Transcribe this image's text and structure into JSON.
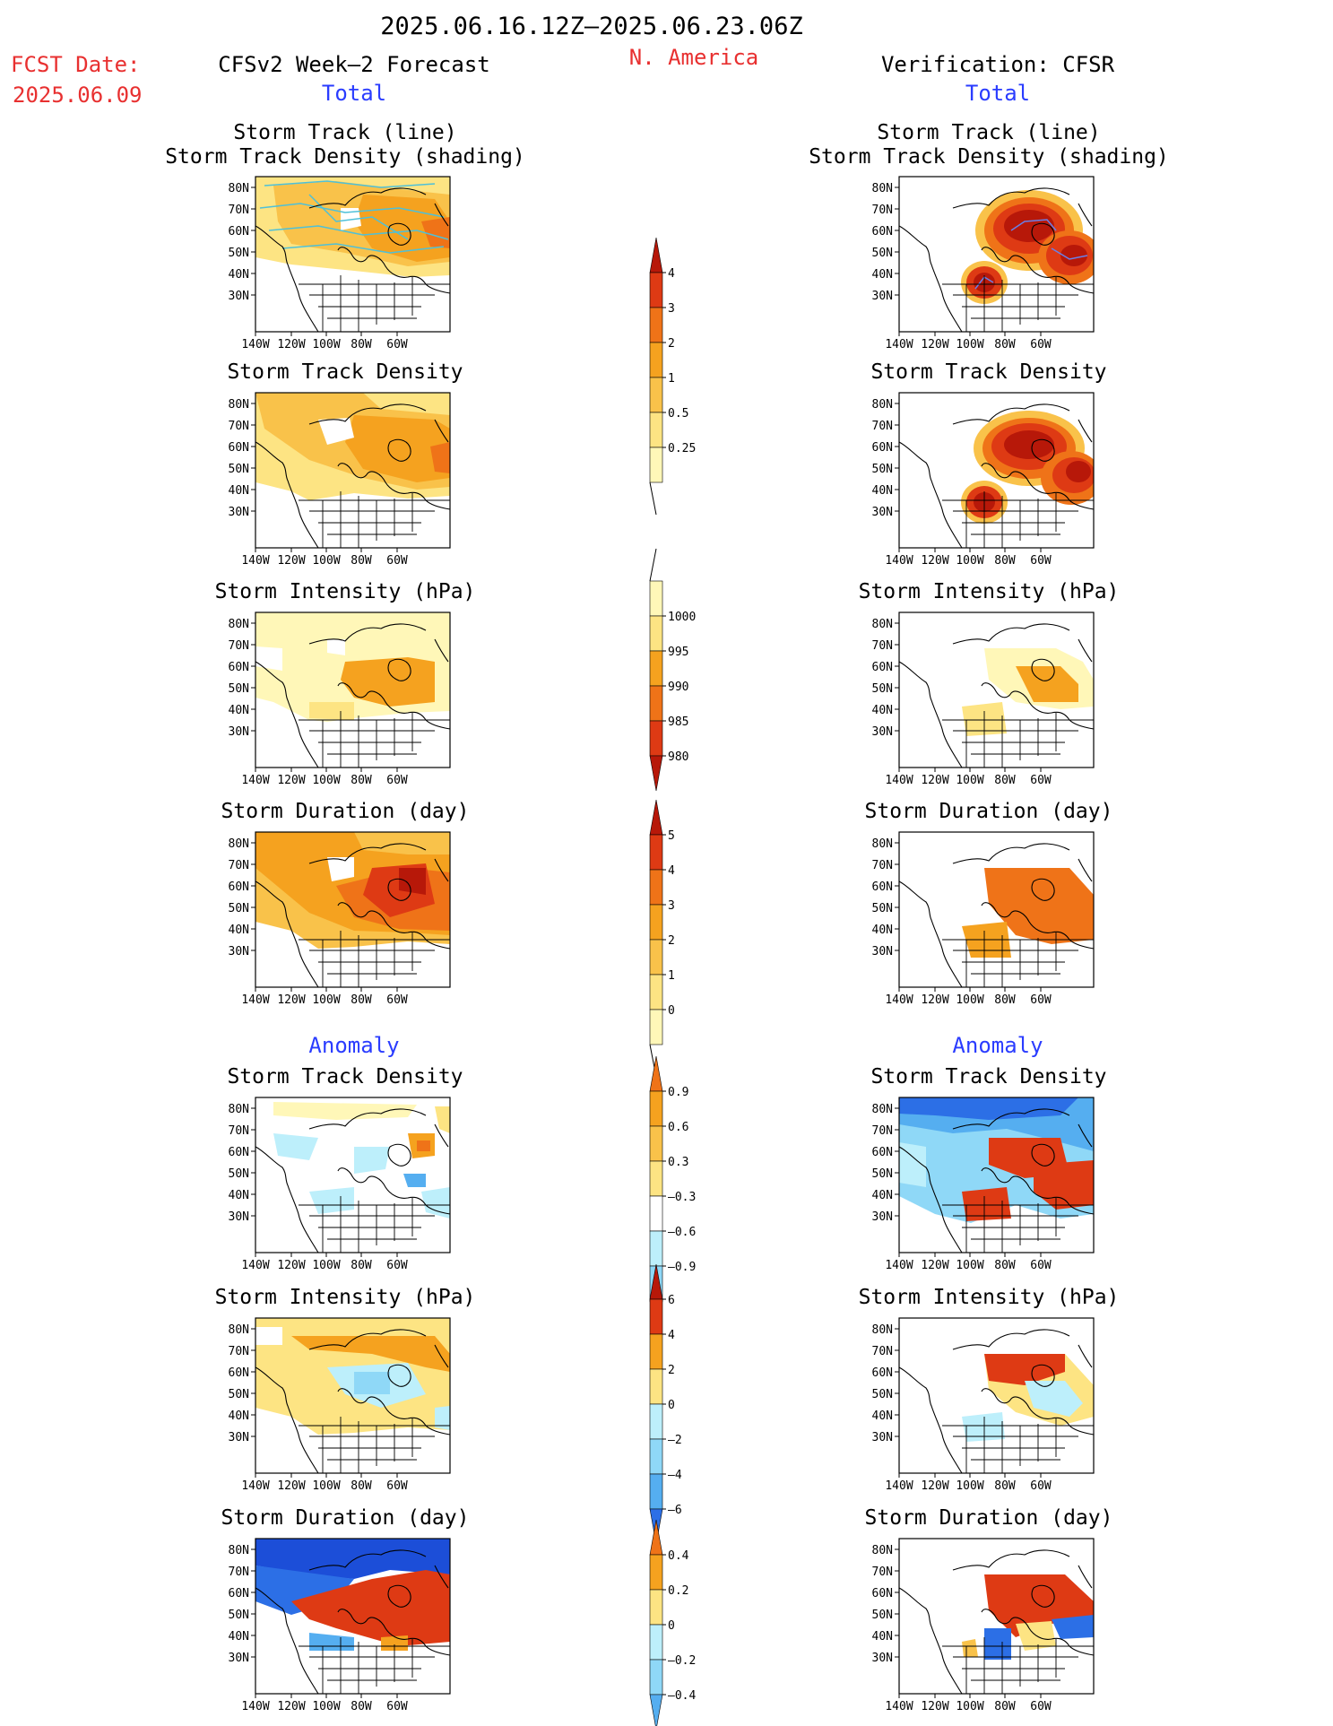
{
  "header": {
    "period": "2025.06.16.12Z–2025.06.23.06Z",
    "fcst_label": "FCST Date:",
    "fcst_date": "2025.06.09",
    "region": "N. America",
    "left_title": "CFSv2 Week–2 Forecast",
    "right_title": "Verification: CFSR",
    "total_label": "Total",
    "anomaly_label": "Anomaly"
  },
  "colors": {
    "red_text": "#e83030",
    "blue_text": "#2a3cff",
    "y1": "#fff7b8",
    "y2": "#fde483",
    "y3": "#f9c24a",
    "o1": "#f5a21f",
    "o2": "#ef7318",
    "r1": "#de3a14",
    "r2": "#b71809",
    "r3": "#8e0606",
    "b1": "#bdeffb",
    "b2": "#8fd8f7",
    "b3": "#55aef0",
    "b4": "#2c6fe6",
    "b5": "#1c4ed8"
  },
  "axes": {
    "lat_labels": [
      "80N",
      "70N",
      "60N",
      "50N",
      "40N",
      "30N"
    ],
    "lon_labels": [
      "140W",
      "120W",
      "100W",
      "80W",
      "60W"
    ]
  },
  "panels": [
    {
      "title": "Storm Track (line)",
      "title2": "Storm Track Density (shading)"
    },
    {
      "title": "Storm Track (line)",
      "title2": "Storm Track Density (shading)"
    },
    {
      "title": "Storm Track Density"
    },
    {
      "title": "Storm Track Density"
    },
    {
      "title": "Storm Intensity (hPa)"
    },
    {
      "title": "Storm Intensity (hPa)"
    },
    {
      "title": "Storm Duration (day)"
    },
    {
      "title": "Storm Duration (day)"
    },
    {
      "title": "Storm Track Density"
    },
    {
      "title": "Storm Track Density"
    },
    {
      "title": "Storm Intensity (hPa)"
    },
    {
      "title": "Storm Intensity (hPa)"
    },
    {
      "title": "Storm Duration (day)"
    },
    {
      "title": "Storm Duration (day)"
    }
  ],
  "colorbars": [
    {
      "name": "density-total",
      "labels": [
        "4",
        "3",
        "2",
        "1",
        "0.5",
        "0.25"
      ]
    },
    {
      "name": "intensity-total",
      "labels": [
        "1000",
        "995",
        "990",
        "985",
        "980"
      ]
    },
    {
      "name": "duration-total",
      "labels": [
        "5",
        "4",
        "3",
        "2",
        "1",
        "0"
      ]
    },
    {
      "name": "density-anomaly",
      "labels": [
        "0.9",
        "0.6",
        "0.3",
        "–0.3",
        "–0.6",
        "–0.9"
      ]
    },
    {
      "name": "intensity-anomaly",
      "labels": [
        "6",
        "4",
        "2",
        "0",
        "–2",
        "–4",
        "–6"
      ]
    },
    {
      "name": "duration-anomaly",
      "labels": [
        "0.4",
        "0.2",
        "0",
        "–0.2",
        "–0.4"
      ]
    }
  ]
}
